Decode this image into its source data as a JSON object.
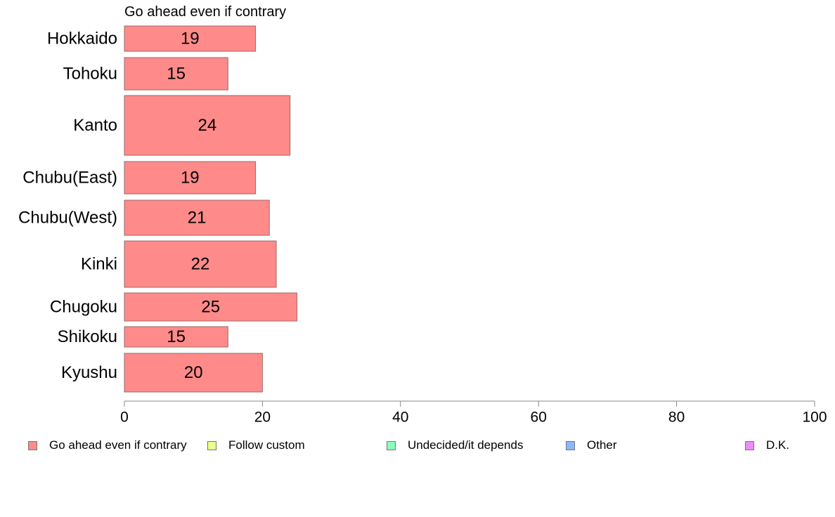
{
  "colors": {
    "go_ahead": "#ff8a8a",
    "follow_custom": "#eeff8a",
    "undecided": "#8affb8",
    "other": "#8ab8ff",
    "dk": "#ee8aff",
    "bar_border": "#9a6a6a",
    "axis": "#888888"
  },
  "chart_data": {
    "type": "bar",
    "orientation": "horizontal",
    "title": "Go ahead even if contrary",
    "categories": [
      "Hokkaido",
      "Tohoku",
      "Kanto",
      "Chubu(East)",
      "Chubu(West)",
      "Kinki",
      "Chugoku",
      "Shikoku",
      "Kyushu"
    ],
    "series": [
      {
        "name": "Go ahead even if contrary",
        "color": "#ff8a8a",
        "values": [
          19,
          15,
          24,
          19,
          21,
          22,
          25,
          15,
          20
        ]
      }
    ],
    "xlim": [
      0,
      100
    ],
    "xticks": [
      "0",
      "20",
      "40",
      "60",
      "80",
      "100"
    ],
    "grid": false,
    "legend_placement": "bottom"
  },
  "legend": [
    {
      "label": "Go ahead even if contrary",
      "color": "#ff8a8a"
    },
    {
      "label": "Follow custom",
      "color": "#eeff8a"
    },
    {
      "label": "Undecided/it depends",
      "color": "#8affb8"
    },
    {
      "label": "Other",
      "color": "#8ab8ff"
    },
    {
      "label": "D.K.",
      "color": "#ee8aff"
    }
  ]
}
